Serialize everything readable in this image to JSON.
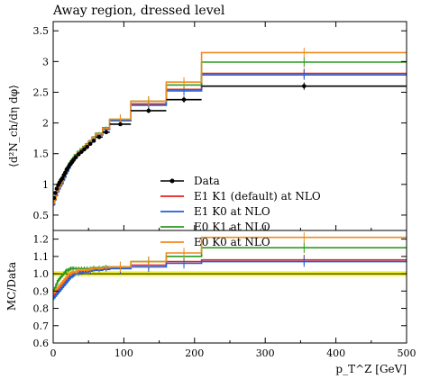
{
  "header": {
    "title": "Away region, dressed level"
  },
  "chart_data": {
    "type": "step",
    "title": "Away region, dressed level",
    "xlabel": "p_T^Z [GeV]",
    "ylabel_top": "⟨d²N_ch/dη dφ⟩",
    "ylabel_bottom": "MC/Data",
    "xlim": [
      0,
      500
    ],
    "ylim_top": [
      0.25,
      3.65
    ],
    "ylim_bottom": [
      0.6,
      1.25
    ],
    "xticks": [
      0,
      100,
      200,
      300,
      400,
      500
    ],
    "yticks_top": [
      0.5,
      1,
      1.5,
      2,
      2.5,
      3,
      3.5
    ],
    "yticks_bottom": [
      0.6,
      0.7,
      0.8,
      0.9,
      1.0,
      1.1,
      1.2
    ],
    "legend_position": "lower-right",
    "bin_edges": [
      0,
      2,
      4,
      6,
      8,
      10,
      12,
      14,
      16,
      18,
      20,
      22,
      24,
      26,
      28,
      30,
      34,
      38,
      42,
      46,
      50,
      55,
      60,
      70,
      80,
      110,
      160,
      210,
      500
    ],
    "series": [
      {
        "name": "Data",
        "color": "#000000",
        "style": "points",
        "values": [
          0.78,
          0.86,
          0.93,
          0.99,
          1.03,
          1.07,
          1.1,
          1.15,
          1.19,
          1.24,
          1.27,
          1.31,
          1.34,
          1.37,
          1.4,
          1.44,
          1.49,
          1.53,
          1.57,
          1.61,
          1.66,
          1.71,
          1.77,
          1.85,
          1.98,
          2.2,
          2.38,
          2.6
        ],
        "errors": [
          0.02,
          0.02,
          0.02,
          0.02,
          0.02,
          0.02,
          0.02,
          0.02,
          0.02,
          0.02,
          0.02,
          0.02,
          0.02,
          0.02,
          0.02,
          0.02,
          0.02,
          0.02,
          0.02,
          0.02,
          0.03,
          0.03,
          0.03,
          0.03,
          0.03,
          0.04,
          0.05,
          0.06
        ]
      },
      {
        "name": "E1 K1 (default) at NLO",
        "color": "#e8211e",
        "ratio_values": [
          0.88,
          0.89,
          0.9,
          0.91,
          0.92,
          0.93,
          0.94,
          0.95,
          0.96,
          0.97,
          0.98,
          0.99,
          0.995,
          1.0,
          1.0,
          1.01,
          1.01,
          1.015,
          1.015,
          1.02,
          1.02,
          1.025,
          1.025,
          1.03,
          1.03,
          1.05,
          1.07,
          1.08
        ]
      },
      {
        "name": "E1 K0 at NLO",
        "color": "#1f5fd6",
        "ratio_values": [
          0.86,
          0.87,
          0.88,
          0.89,
          0.9,
          0.91,
          0.92,
          0.93,
          0.94,
          0.95,
          0.96,
          0.97,
          0.98,
          0.985,
          0.99,
          1.0,
          1.0,
          1.005,
          1.01,
          1.01,
          1.015,
          1.02,
          1.02,
          1.025,
          1.03,
          1.04,
          1.06,
          1.07
        ]
      },
      {
        "name": "E0 K1 at NLO",
        "color": "#2a9a1e",
        "ratio_values": [
          0.9,
          0.92,
          0.94,
          0.96,
          0.97,
          0.98,
          0.99,
          1.0,
          1.01,
          1.02,
          1.02,
          1.025,
          1.03,
          1.03,
          1.03,
          1.03,
          1.03,
          1.03,
          1.03,
          1.03,
          1.03,
          1.035,
          1.035,
          1.04,
          1.04,
          1.07,
          1.1,
          1.15
        ]
      },
      {
        "name": "E0 K0 at NLO",
        "color": "#f18a1c",
        "ratio_values": [
          0.89,
          0.9,
          0.91,
          0.92,
          0.93,
          0.94,
          0.95,
          0.96,
          0.97,
          0.98,
          0.99,
          1.0,
          1.0,
          1.01,
          1.01,
          1.01,
          1.02,
          1.02,
          1.02,
          1.02,
          1.025,
          1.03,
          1.03,
          1.035,
          1.04,
          1.07,
          1.12,
          1.21
        ]
      }
    ]
  }
}
